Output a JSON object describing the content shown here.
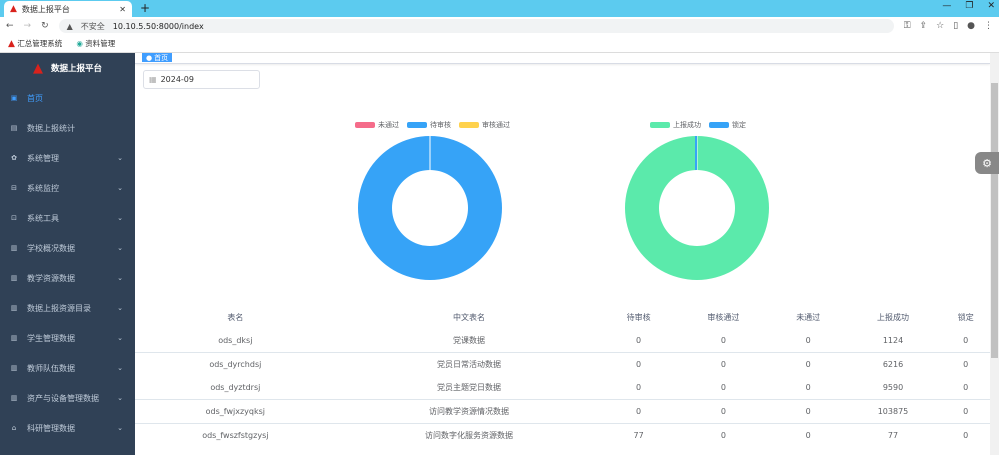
{
  "browser": {
    "tab_title": "数据上报平台",
    "url_warning": "不安全",
    "url": "10.10.5.50:8000/index",
    "bookmarks": [
      "汇总管理系统",
      "资料管理"
    ]
  },
  "app": {
    "brand": "数据上报平台",
    "tag": "首页",
    "date": "2024-09"
  },
  "sidebar": {
    "items": [
      {
        "label": "首页",
        "icon": "dashboard-icon",
        "active": true
      },
      {
        "label": "数据上报统计",
        "icon": "table-icon"
      },
      {
        "label": "系统管理",
        "icon": "gear-icon",
        "chevron": true
      },
      {
        "label": "系统监控",
        "icon": "monitor-icon",
        "chevron": true
      },
      {
        "label": "系统工具",
        "icon": "tool-icon",
        "chevron": true
      },
      {
        "label": "学校概况数据",
        "icon": "chart-icon",
        "chevron": true
      },
      {
        "label": "教学资源数据",
        "icon": "chart-icon",
        "chevron": true
      },
      {
        "label": "数据上报资源目录",
        "icon": "chart-icon",
        "chevron": true
      },
      {
        "label": "学生管理数据",
        "icon": "chart-icon",
        "chevron": true
      },
      {
        "label": "教师队伍数据",
        "icon": "chart-icon",
        "chevron": true
      },
      {
        "label": "资产与设备管理数据",
        "icon": "chart-icon",
        "chevron": true
      },
      {
        "label": "科研管理数据",
        "icon": "research-icon",
        "chevron": true
      }
    ]
  },
  "chart_data": [
    {
      "type": "pie",
      "legend": [
        "未通过",
        "待审核",
        "审核通过"
      ],
      "colors": [
        "#f56c8a",
        "#36a3f7",
        "#ffd24d"
      ],
      "values": [
        0,
        77,
        0
      ]
    },
    {
      "type": "pie",
      "legend": [
        "上报成功",
        "锁定"
      ],
      "colors": [
        "#5beaab",
        "#36a3f7"
      ],
      "values": [
        120882,
        0
      ]
    }
  ],
  "table": {
    "headers": [
      "表名",
      "中文表名",
      "待审核",
      "审核通过",
      "未通过",
      "上报成功",
      "锁定"
    ],
    "rows": [
      [
        "ods_dksj",
        "党课数据",
        "0",
        "0",
        "0",
        "1124",
        "0"
      ],
      [
        "ods_dyrchdsj",
        "党员日常活动数据",
        "0",
        "0",
        "0",
        "6216",
        "0"
      ],
      [
        "ods_dyztdrsj",
        "党员主题党日数据",
        "0",
        "0",
        "0",
        "9590",
        "0"
      ],
      [
        "ods_fwjxzyqksj",
        "访问教学资源情况数据",
        "0",
        "0",
        "0",
        "103875",
        "0"
      ],
      [
        "ods_fwszfstgzysj",
        "访问数字化服务资源数据",
        "77",
        "0",
        "0",
        "77",
        "0"
      ]
    ]
  }
}
